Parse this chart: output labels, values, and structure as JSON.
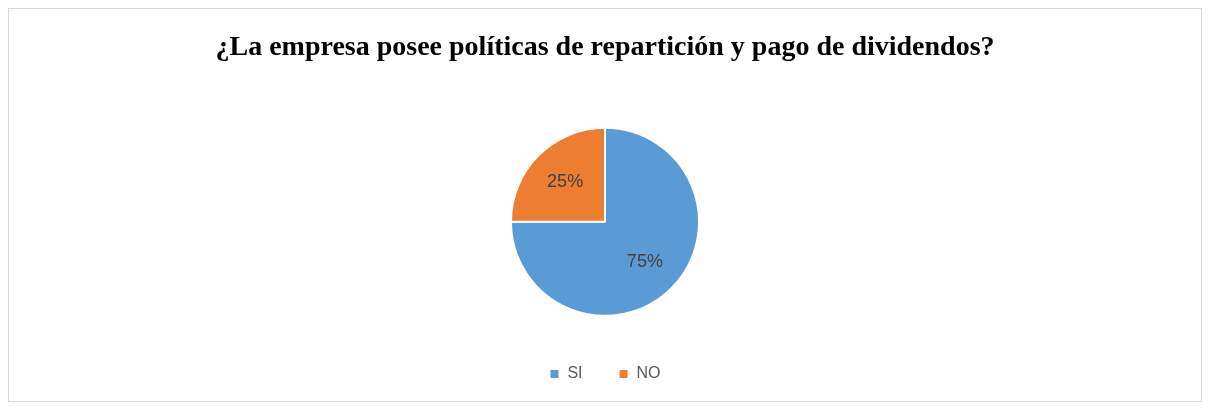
{
  "chart_data": {
    "type": "pie",
    "title": "¿La empresa posee políticas de repartición y pago de dividendos?",
    "categories": [
      "SI",
      "NO"
    ],
    "values": [
      75,
      25
    ],
    "colors": [
      "#5b9bd5",
      "#ed7d31"
    ],
    "value_labels": [
      "75%",
      "25%"
    ],
    "legend": "bottom"
  }
}
